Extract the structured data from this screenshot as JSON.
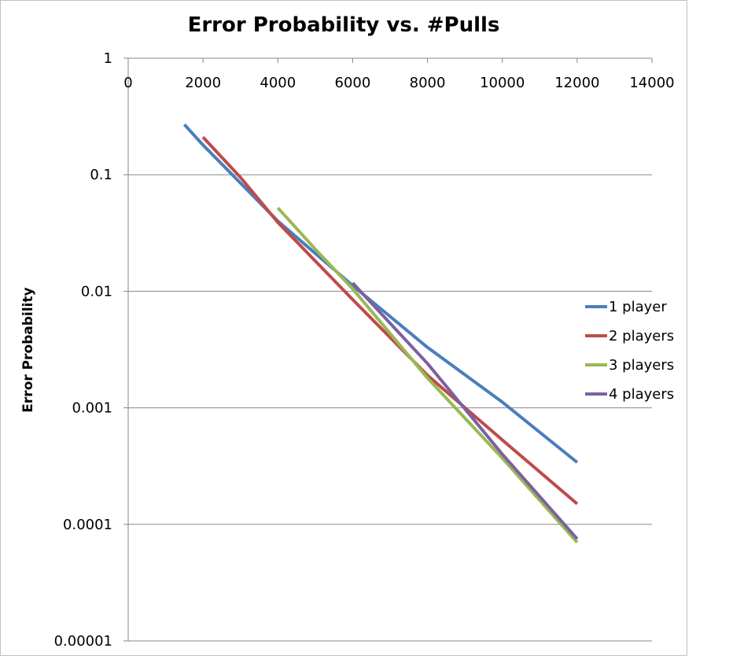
{
  "chart_data": {
    "type": "line",
    "title": "Error Probability vs. #Pulls",
    "xlabel": "",
    "ylabel": "Error Probability",
    "x_scale": "linear",
    "y_scale": "log",
    "xlim": [
      0,
      14000
    ],
    "ylim": [
      1e-05,
      1
    ],
    "x_ticks": [
      "0",
      "2000",
      "4000",
      "6000",
      "8000",
      "10000",
      "12000",
      "14000"
    ],
    "x_tick_values": [
      0,
      2000,
      4000,
      6000,
      8000,
      10000,
      12000,
      14000
    ],
    "y_ticks": [
      "1",
      "0.1",
      "0.01",
      "0.001",
      "0.0001",
      "0.00001"
    ],
    "y_tick_values": [
      1,
      0.1,
      0.01,
      0.001,
      0.0001,
      1e-05
    ],
    "x_axis_position": "top",
    "grid": "horizontal",
    "legend_position": "right",
    "series": [
      {
        "name": "1 player",
        "color": "#4a7ebb",
        "points": [
          [
            1500,
            0.27
          ],
          [
            2000,
            0.18
          ],
          [
            3000,
            0.085
          ],
          [
            4000,
            0.04
          ],
          [
            6000,
            0.0112
          ],
          [
            8000,
            0.0033
          ],
          [
            10000,
            0.00112
          ],
          [
            12000,
            0.00034
          ]
        ]
      },
      {
        "name": "2 players",
        "color": "#be4b48",
        "points": [
          [
            2000,
            0.21
          ],
          [
            3000,
            0.095
          ],
          [
            4000,
            0.039
          ],
          [
            6000,
            0.0085
          ],
          [
            8000,
            0.0019
          ],
          [
            10000,
            0.00053
          ],
          [
            12000,
            0.00015
          ]
        ]
      },
      {
        "name": "3 players",
        "color": "#98b954",
        "points": [
          [
            4000,
            0.052
          ],
          [
            5000,
            0.023
          ],
          [
            6000,
            0.0105
          ],
          [
            8000,
            0.0018
          ],
          [
            10000,
            0.00037
          ],
          [
            12000,
            7e-05
          ]
        ]
      },
      {
        "name": "4 players",
        "color": "#7d60a0",
        "points": [
          [
            6000,
            0.0118
          ],
          [
            8000,
            0.0024
          ],
          [
            10000,
            0.0004
          ],
          [
            12000,
            7.5e-05
          ]
        ]
      }
    ]
  }
}
